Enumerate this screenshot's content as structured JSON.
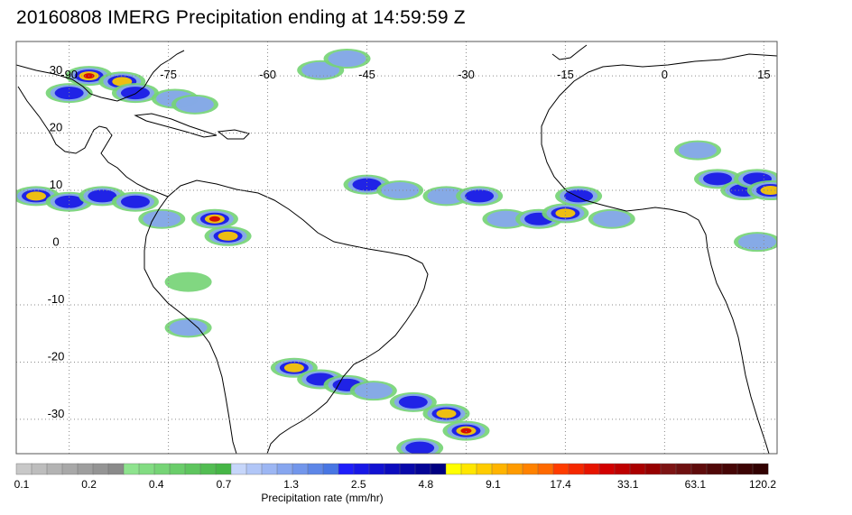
{
  "title": "20160808 IMERG Precipitation ending at 14:59:59 Z",
  "map": {
    "lon_range": [
      -98,
      17
    ],
    "lat_range": [
      -36,
      36
    ],
    "lon_ticks": [
      -90,
      -75,
      -60,
      -45,
      -30,
      -15,
      0,
      15
    ],
    "lat_ticks": [
      30,
      20,
      10,
      0,
      -10,
      -20,
      -30
    ],
    "lon_tick_labels": [
      "-90",
      "-75",
      "-60",
      "-45",
      "-30",
      "-15",
      "0",
      "15"
    ],
    "lat_tick_labels": [
      "30",
      "20",
      "10",
      "0",
      "-10",
      "-20",
      "-30"
    ],
    "grid": "dotted",
    "coastline_color": "#000000",
    "precip_cells": [
      {
        "lon": -87,
        "lat": 30,
        "level": 5
      },
      {
        "lon": -82,
        "lat": 29,
        "level": 4
      },
      {
        "lon": -80,
        "lat": 27,
        "level": 3
      },
      {
        "lon": -90,
        "lat": 27,
        "level": 3
      },
      {
        "lon": -74,
        "lat": 26,
        "level": 2
      },
      {
        "lon": -71,
        "lat": 25,
        "level": 2
      },
      {
        "lon": -52,
        "lat": 31,
        "level": 2
      },
      {
        "lon": -48,
        "lat": 33,
        "level": 2
      },
      {
        "lon": -95,
        "lat": 9,
        "level": 4
      },
      {
        "lon": -90,
        "lat": 8,
        "level": 3
      },
      {
        "lon": -85,
        "lat": 9,
        "level": 3
      },
      {
        "lon": -80,
        "lat": 8,
        "level": 3
      },
      {
        "lon": -76,
        "lat": 5,
        "level": 2
      },
      {
        "lon": -68,
        "lat": 5,
        "level": 5
      },
      {
        "lon": -66,
        "lat": 2,
        "level": 4
      },
      {
        "lon": -45,
        "lat": 11,
        "level": 3
      },
      {
        "lon": -40,
        "lat": 10,
        "level": 2
      },
      {
        "lon": -33,
        "lat": 9,
        "level": 2
      },
      {
        "lon": -28,
        "lat": 9,
        "level": 3
      },
      {
        "lon": -24,
        "lat": 5,
        "level": 2
      },
      {
        "lon": -19,
        "lat": 5,
        "level": 3
      },
      {
        "lon": -15,
        "lat": 6,
        "level": 4
      },
      {
        "lon": -13,
        "lat": 9,
        "level": 3
      },
      {
        "lon": -8,
        "lat": 5,
        "level": 2
      },
      {
        "lon": 5,
        "lat": 17,
        "level": 2
      },
      {
        "lon": 8,
        "lat": 12,
        "level": 3
      },
      {
        "lon": 12,
        "lat": 10,
        "level": 3
      },
      {
        "lon": 14,
        "lat": 12,
        "level": 3
      },
      {
        "lon": 16,
        "lat": 10,
        "level": 4
      },
      {
        "lon": 14,
        "lat": 1,
        "level": 2
      },
      {
        "lon": -56,
        "lat": -21,
        "level": 4
      },
      {
        "lon": -52,
        "lat": -23,
        "level": 3
      },
      {
        "lon": -48,
        "lat": -24,
        "level": 3
      },
      {
        "lon": -44,
        "lat": -25,
        "level": 2
      },
      {
        "lon": -38,
        "lat": -27,
        "level": 3
      },
      {
        "lon": -33,
        "lat": -29,
        "level": 4
      },
      {
        "lon": -30,
        "lat": -32,
        "level": 5
      },
      {
        "lon": -37,
        "lat": -35,
        "level": 3
      },
      {
        "lon": -72,
        "lat": -14,
        "level": 2
      },
      {
        "lon": -72,
        "lat": -6,
        "level": 1
      }
    ]
  },
  "colorbar": {
    "label": "Precipitation rate (mm/hr)",
    "tick_labels": [
      "0.1",
      "0.2",
      "0.4",
      "0.7",
      "1.3",
      "2.5",
      "4.8",
      "9.1",
      "17.4",
      "33.1",
      "63.1",
      "120.2"
    ],
    "colors": [
      "#c8c8c8",
      "#bdbdbd",
      "#b3b3b3",
      "#a8a8a8",
      "#9e9e9e",
      "#949494",
      "#8a8a8a",
      "#8ee38e",
      "#82dc82",
      "#76d476",
      "#6acd6a",
      "#5ec55e",
      "#52bd52",
      "#46b646",
      "#c6d6fa",
      "#b1c6f7",
      "#9cb6f3",
      "#87a6ef",
      "#7296eb",
      "#5d86e7",
      "#4876e3",
      "#1e1efa",
      "#1818e6",
      "#1212d2",
      "#0c0cbe",
      "#0808aa",
      "#040496",
      "#000082",
      "#ffff00",
      "#ffe600",
      "#ffcc00",
      "#ffb400",
      "#ff9b00",
      "#ff8200",
      "#ff6900",
      "#ff3c00",
      "#f52800",
      "#e61400",
      "#d20000",
      "#be0000",
      "#aa0000",
      "#960000",
      "#7d1414",
      "#6e1010",
      "#5f0c0c",
      "#500808",
      "#460606",
      "#3c0404",
      "#320202"
    ]
  }
}
